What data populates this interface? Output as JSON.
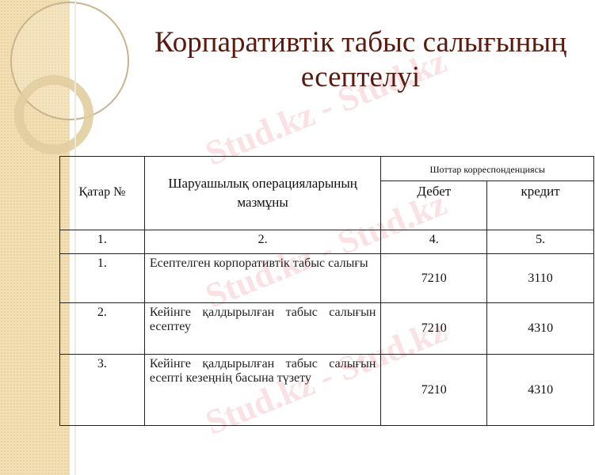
{
  "title": "Корпаративтік табыс салығының есептелуі",
  "watermark": "Stud.kz - Stud.kz",
  "table": {
    "header": {
      "row_no": "Қатар №",
      "operation": "Шаруашылық операцияларының мазмұны",
      "correspondence": "Шоттар корреспонденциясы",
      "debit": "Дебет",
      "credit": "кредит"
    },
    "numbering": [
      "1.",
      "2.",
      "4.",
      "5."
    ],
    "rows": [
      {
        "no": "1.",
        "operation": "Есептелген корпоративтік табыс салығы",
        "debit": "7210",
        "credit": "3110"
      },
      {
        "no": "2.",
        "operation": "Кейінге қалдырылған табыс салығын есептеу",
        "debit": "7210",
        "credit": "4310"
      },
      {
        "no": "3.",
        "operation": "Кейінге қалдырылған табыс салығын есепті кезеңнің басына түзету",
        "debit": "7210",
        "credit": "4310"
      }
    ]
  }
}
